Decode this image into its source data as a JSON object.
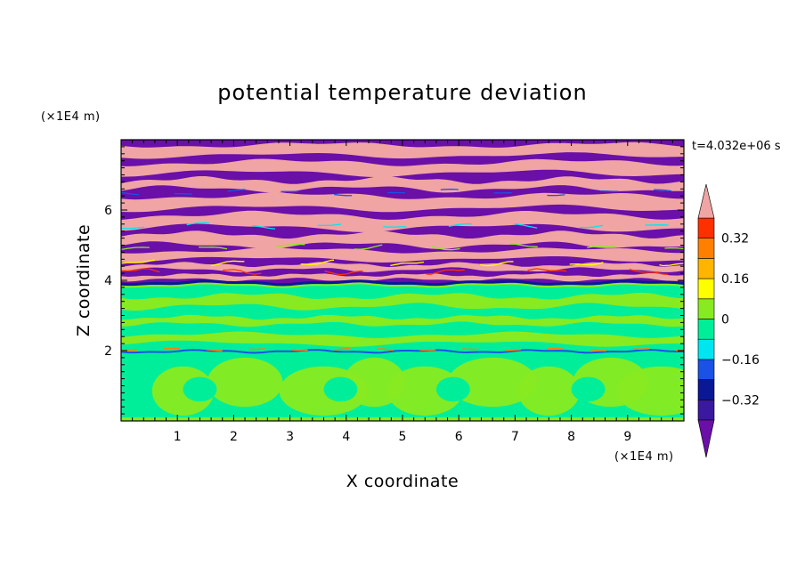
{
  "chart_data": {
    "type": "heatmap",
    "title": "potential temperature deviation",
    "xlabel": "X coordinate",
    "ylabel": "Z coordinate",
    "x_unit": "(×1E4 m)",
    "y_unit": "(×1E4 m)",
    "time_label": "t=4.032e+06 s",
    "xlim": [
      0,
      10
    ],
    "ylim": [
      0,
      8
    ],
    "x_ticks": [
      1,
      2,
      3,
      4,
      5,
      6,
      7,
      8,
      9
    ],
    "y_ticks": [
      2,
      4,
      6
    ],
    "grid": false,
    "colorbar": {
      "levels": [
        -0.48,
        -0.4,
        -0.32,
        -0.24,
        -0.16,
        -0.08,
        0,
        0.08,
        0.16,
        0.24,
        0.32,
        0.4,
        0.48
      ],
      "labeled_ticks": [
        -0.32,
        -0.16,
        0,
        0.16,
        0.32
      ],
      "tick_labels": [
        "0.32",
        "0.16",
        "0",
        "−0.16",
        "−0.32"
      ],
      "colors": [
        "#6a0fa8",
        "#3a189f",
        "#0a1896",
        "#1a52e6",
        "#00e6f0",
        "#00ee9a",
        "#88ea20",
        "#ffff00",
        "#ffb400",
        "#ff8000",
        "#ff3000",
        "#f0a4a4"
      ],
      "extend": "both"
    },
    "regions": [
      {
        "z_range": [
          0,
          2.0
        ],
        "dominant": "0 to 0.08 and -0.08 to 0",
        "description": "lower layer: alternating green and light-green cells"
      },
      {
        "z_range": [
          2.0,
          3.9
        ],
        "dominant": "-0.08 to 0.08",
        "description": "middle layer: mostly green"
      },
      {
        "z_range": [
          3.9,
          8.0
        ],
        "dominant": "-0.48 and 0.48 extremes",
        "description": "upper layer: alternating purple and pink horizontal bands"
      }
    ]
  }
}
